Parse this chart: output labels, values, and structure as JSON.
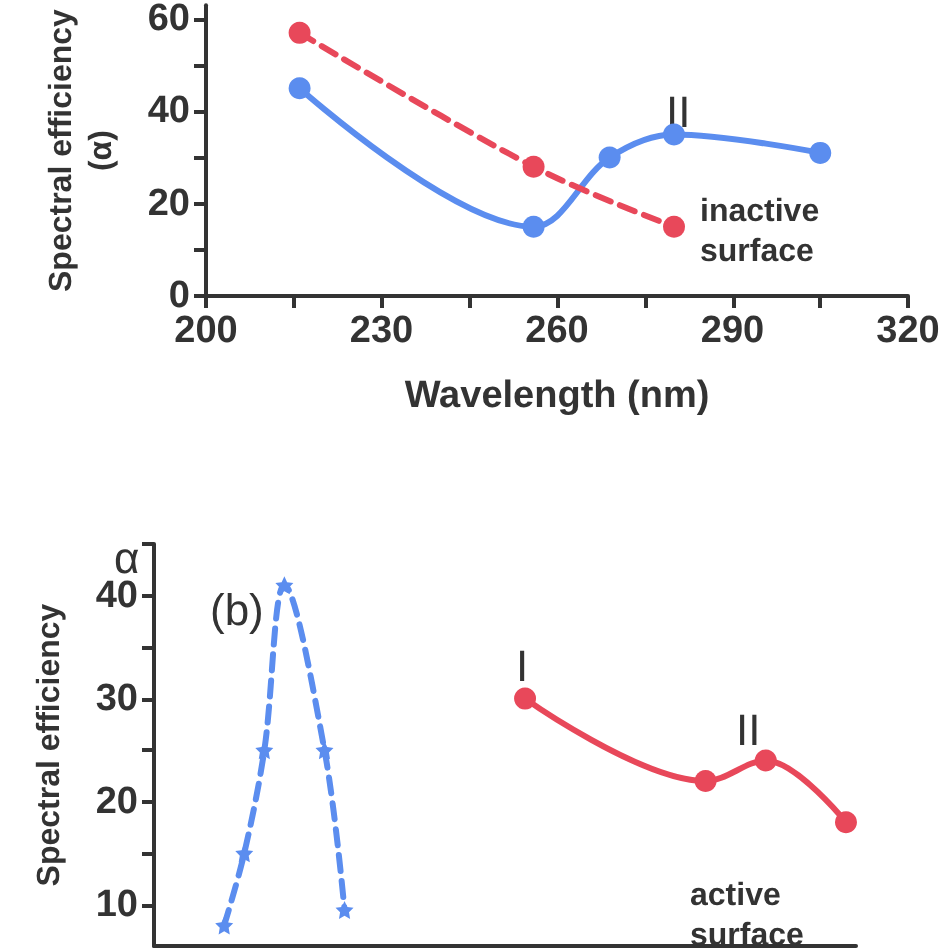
{
  "chart_data": [
    {
      "type": "line",
      "xlabel": "Wavelength (nm)",
      "ylabel": "Spectral efficiency\n(α)",
      "xlim": [
        200,
        320
      ],
      "ylim": [
        0,
        63
      ],
      "xticks": [
        200,
        {
          "value": 215,
          "label": null
        },
        230,
        {
          "value": 245,
          "label": null
        },
        260,
        {
          "value": 275,
          "label": null
        },
        290,
        {
          "value": 305,
          "label": null
        },
        320
      ],
      "yticks": [
        0,
        {
          "value": 10,
          "label": null
        },
        20,
        {
          "value": 30,
          "label": null
        },
        40,
        {
          "value": 50,
          "label": null
        },
        60
      ],
      "series": [
        {
          "color": "#5b8def",
          "x": [
            216,
            256,
            269,
            280,
            305
          ],
          "values": [
            45,
            15,
            30,
            35,
            31
          ],
          "marker": "circle",
          "line_style": "solid"
        },
        {
          "color": "#e8485a",
          "x": [
            216,
            256,
            280
          ],
          "values": [
            57,
            28,
            15
          ],
          "marker": "circle",
          "line_style": "dashed"
        }
      ],
      "annotations": [
        "II",
        "inactive surface"
      ]
    },
    {
      "type": "line",
      "ylabel": "Spectral efficiency",
      "tick_labels": "y",
      "ylim": [
        6,
        45
      ],
      "yticks": [
        10,
        {
          "value": 15,
          "label": null
        },
        20,
        {
          "value": 25,
          "label": null
        },
        30,
        {
          "value": 35,
          "label": null
        },
        40,
        {
          "value": 45,
          "label": null
        }
      ],
      "categories": [
        null,
        null,
        null,
        null,
        null,
        null,
        null,
        null,
        null,
        null,
        null,
        null,
        null,
        null,
        null,
        null,
        null,
        null,
        null,
        null,
        null,
        null,
        null,
        null,
        null,
        null,
        null,
        null,
        null,
        null,
        null,
        null,
        null,
        null,
        null
      ],
      "series": [
        {
          "color": "#5b8def",
          "marker": "star",
          "line_style": "dashed",
          "values": [
            null,
            null,
            null,
            8,
            15,
            25,
            41,
            null,
            25,
            9.5,
            null,
            null,
            null,
            null,
            null,
            null,
            null,
            null,
            null,
            null,
            null,
            null,
            null,
            null,
            null,
            null,
            null,
            null,
            null,
            null,
            null,
            null,
            null,
            null,
            null
          ]
        },
        {
          "color": "#e8485a",
          "marker": "circle",
          "line_style": "solid",
          "values": [
            null,
            null,
            null,
            null,
            null,
            null,
            null,
            null,
            null,
            null,
            null,
            null,
            null,
            null,
            null,
            null,
            null,
            null,
            30,
            null,
            null,
            null,
            null,
            null,
            null,
            null,
            null,
            22,
            null,
            null,
            24,
            null,
            null,
            null,
            18
          ]
        }
      ],
      "annotations": [
        "α",
        "(b)",
        "I",
        "II",
        "active surface"
      ]
    }
  ]
}
